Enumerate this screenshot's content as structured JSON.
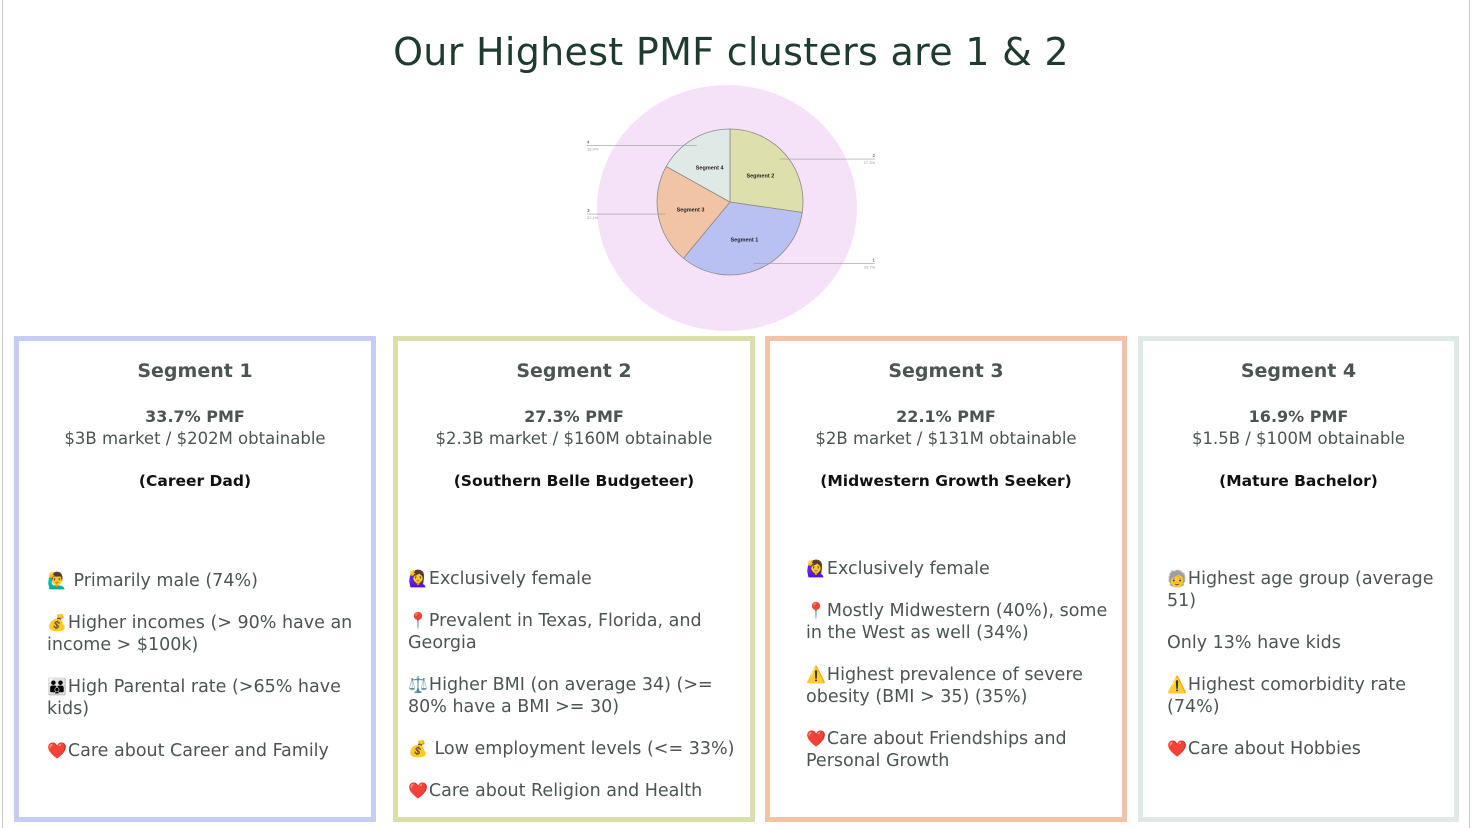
{
  "title": "Our Highest PMF clusters are 1 & 2",
  "chart_data": {
    "type": "pie",
    "slices": [
      {
        "label": "Segment 1",
        "index": "1",
        "pct_label": "33.7%",
        "value": 33.7,
        "color": "#b9c0f2"
      },
      {
        "label": "Segment 2",
        "index": "2",
        "pct_label": "27.3%",
        "value": 27.3,
        "color": "#dde0ad"
      },
      {
        "label": "Segment 3",
        "index": "3",
        "pct_label": "22.1%",
        "value": 22.1,
        "color": "#f1c4a6"
      },
      {
        "label": "Segment 4",
        "index": "4",
        "pct_label": "16.9%",
        "value": 16.9,
        "color": "#dfeae6"
      }
    ],
    "background_color": "#f6e2f8"
  },
  "segments": [
    {
      "title": "Segment 1",
      "pmf": "33.7% PMF",
      "market": "$3B market / $202M obtainable",
      "persona": "(Career Dad)",
      "border_color": "#c6ccf3",
      "bullets": [
        {
          "icon": "🙋‍♂️",
          "icon_name": "man-raising-hand-icon",
          "text": " Primarily male (74%)"
        },
        {
          "icon": "💰",
          "icon_name": "money-bag-icon",
          "text": "Higher incomes (> 90% have an income > $100k)"
        },
        {
          "icon": "👪",
          "icon_name": "family-icon",
          "text": "High Parental rate (>65% have kids)"
        },
        {
          "icon": "❤️",
          "icon_name": "heart-icon",
          "text": "Care about Career and Family"
        }
      ]
    },
    {
      "title": "Segment 2",
      "pmf": "27.3% PMF",
      "market": "$2.3B market / $160M obtainable",
      "persona": "(Southern Belle Budgeteer)",
      "border_color": "#dadfa9",
      "bullets": [
        {
          "icon": "🙋‍♀️",
          "icon_name": "woman-raising-hand-icon",
          "text": "Exclusively female"
        },
        {
          "icon": "📍",
          "icon_name": "location-pin-icon",
          "text": "Prevalent in Texas, Florida, and Georgia"
        },
        {
          "icon": "⚖️",
          "icon_name": "scale-icon",
          "text": "Higher BMI (on average 34) (>= 80% have a BMI >= 30)"
        },
        {
          "icon": "💰",
          "icon_name": "money-bag-icon",
          "text": " Low employment levels (<= 33%)"
        },
        {
          "icon": "❤️",
          "icon_name": "heart-icon",
          "text": "Care about Religion and Health"
        }
      ]
    },
    {
      "title": "Segment 3",
      "pmf": "22.1% PMF",
      "market": "$2B market / $131M obtainable",
      "persona": "(Midwestern Growth Seeker)",
      "border_color": "#f1c4a7",
      "bullets": [
        {
          "icon": "🙋‍♀️",
          "icon_name": "woman-raising-hand-icon",
          "text": "Exclusively female"
        },
        {
          "icon": "📍",
          "icon_name": "location-pin-icon",
          "text": "Mostly Midwestern (40%), some in the West as well (34%)"
        },
        {
          "icon": "⚠️",
          "icon_name": "warning-icon",
          "text": "Highest prevalence of severe obesity (BMI > 35) (35%)"
        },
        {
          "icon": "❤️",
          "icon_name": "heart-icon",
          "text": "Care about Friendships and Personal Growth"
        }
      ]
    },
    {
      "title": "Segment 4",
      "pmf": "16.9% PMF",
      "market": "$1.5B / $100M obtainable",
      "persona": "(Mature Bachelor)",
      "border_color": "#dfe9e5",
      "bullets": [
        {
          "icon": "🧓",
          "icon_name": "older-person-icon",
          "text": "Highest age group (average 51)"
        },
        {
          "icon": "",
          "icon_name": "",
          "text": "Only 13% have kids"
        },
        {
          "icon": "⚠️",
          "icon_name": "warning-icon",
          "text": "Highest comorbidity rate (74%)"
        },
        {
          "icon": "❤️",
          "icon_name": "heart-icon",
          "text": "Care about Hobbies"
        }
      ]
    }
  ]
}
